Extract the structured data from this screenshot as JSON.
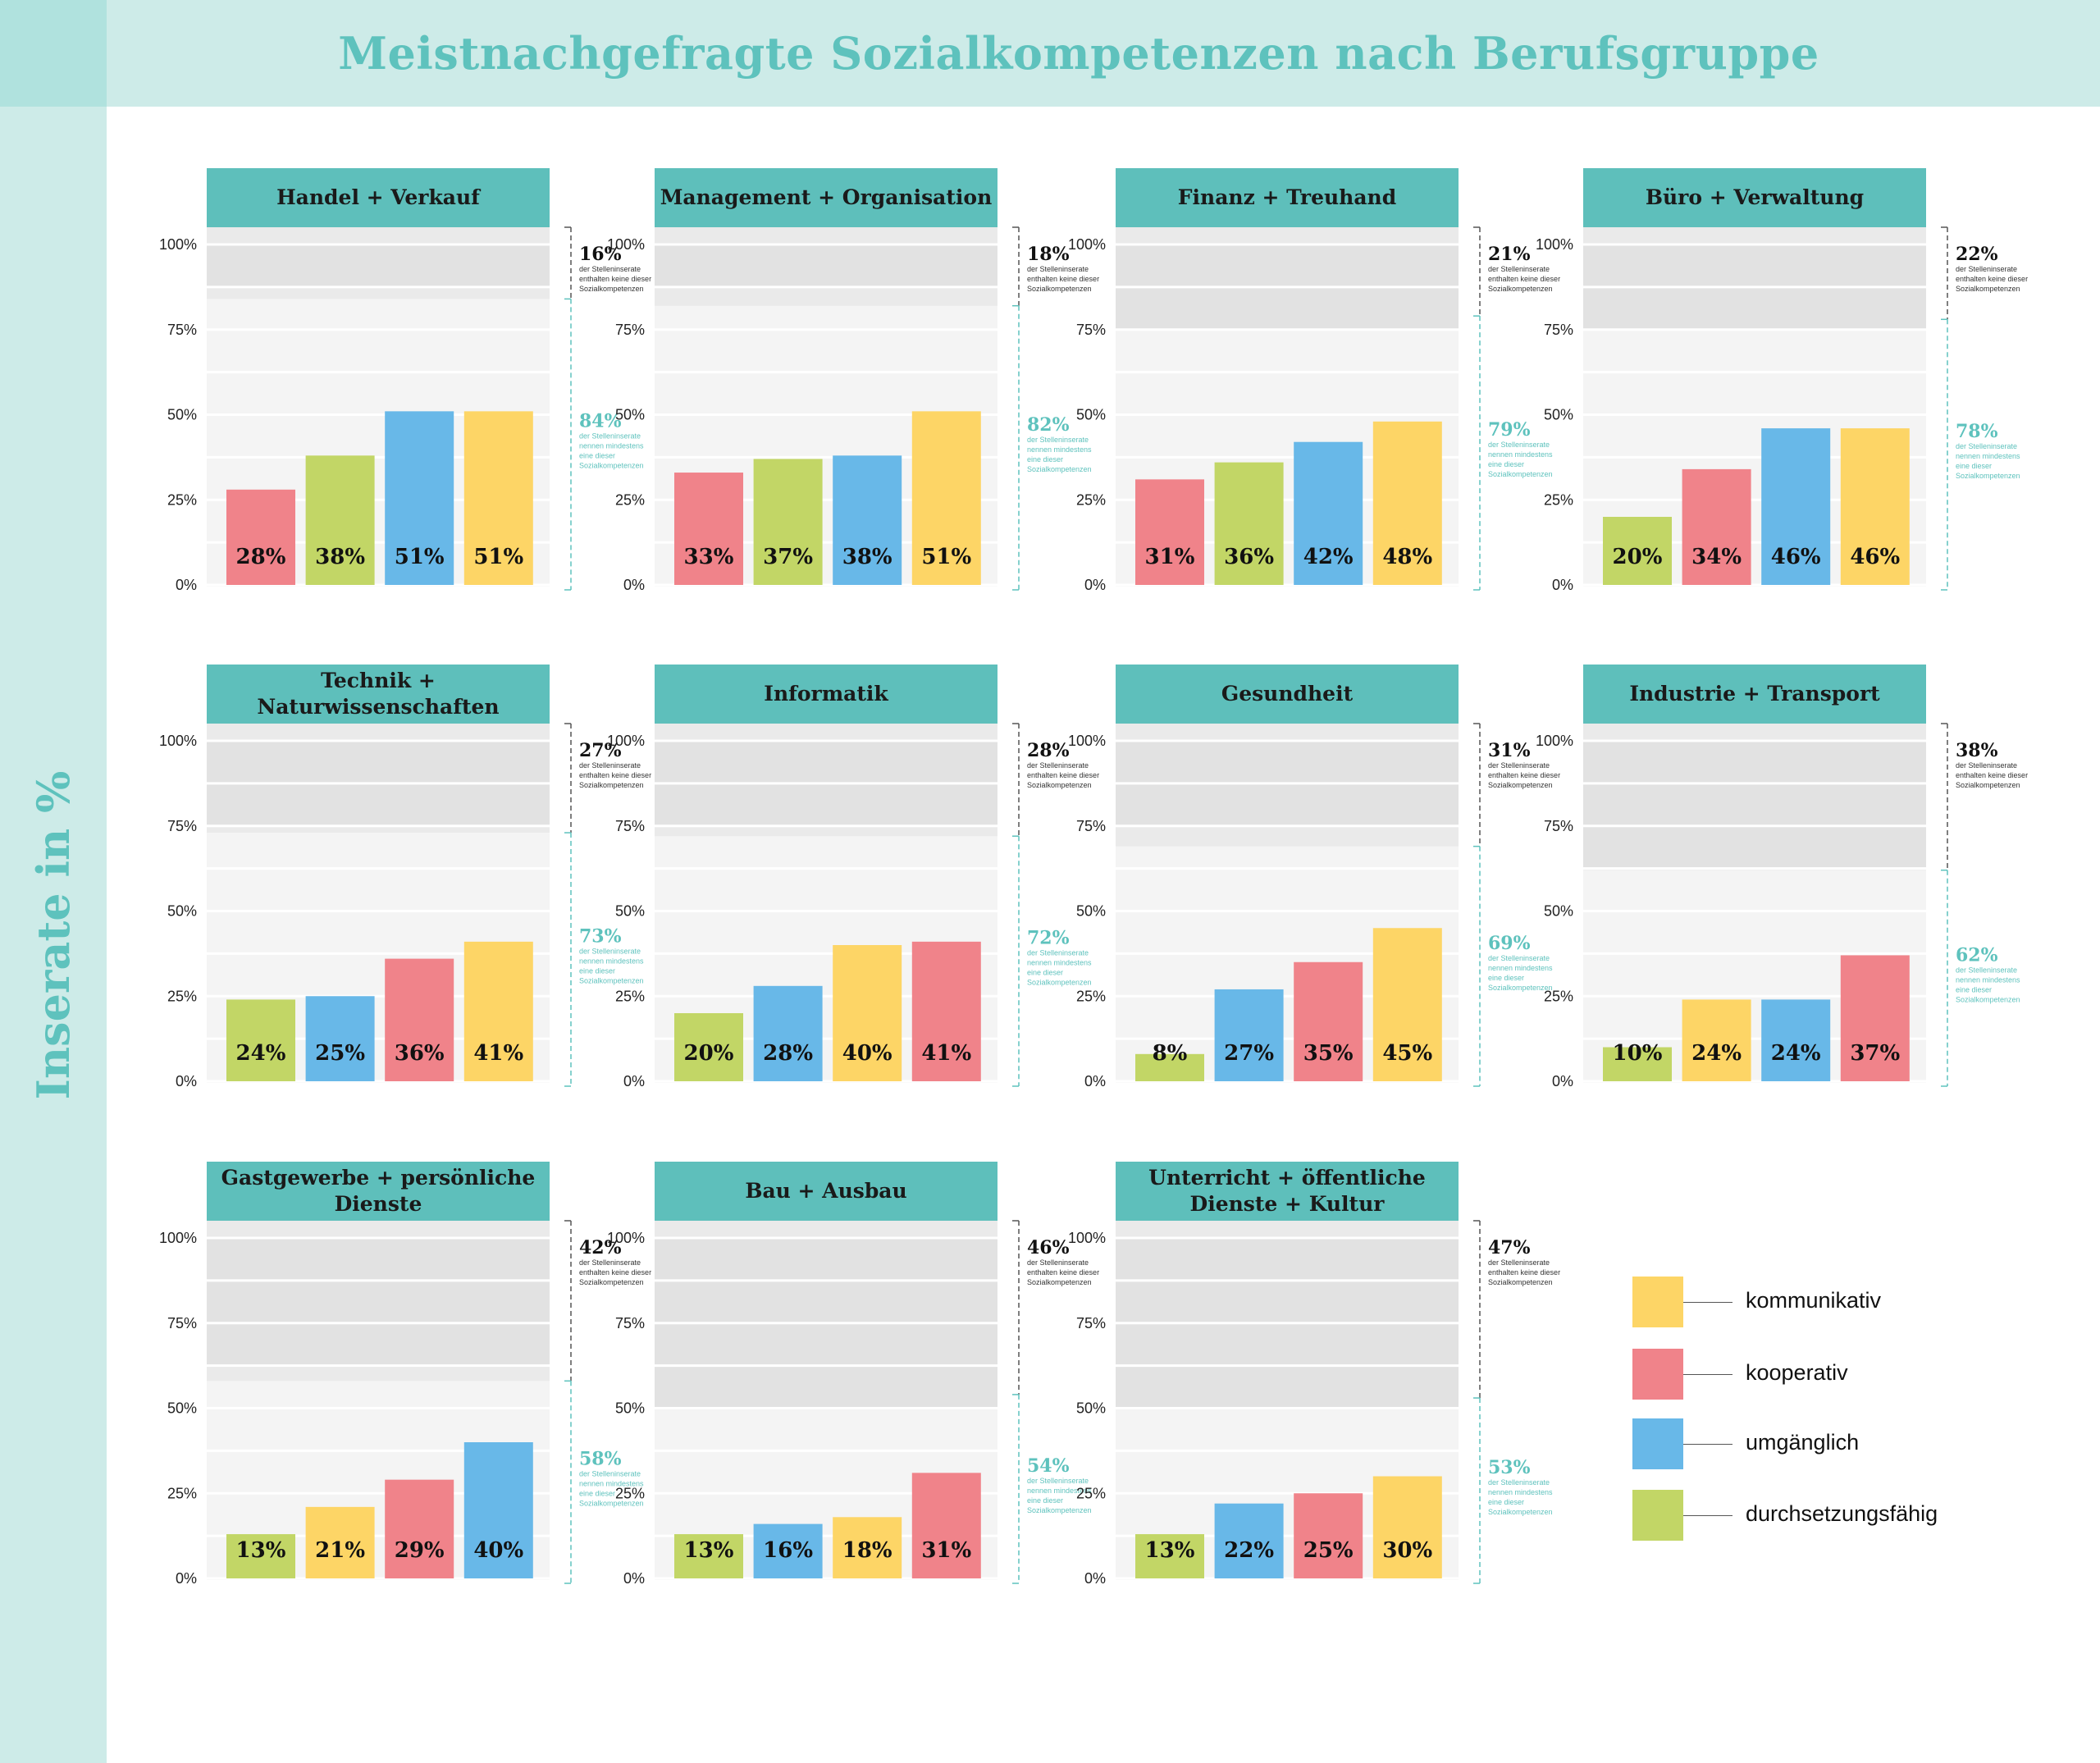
{
  "title": "Meistnachgefragte Sozialkompetenzen nach Berufsgruppe",
  "y_axis_title": "Inserate in %",
  "y_ticks": [
    "100%",
    "75%",
    "50%",
    "25%",
    "0%"
  ],
  "colors": {
    "kommunikativ": "#fdd566",
    "kooperativ": "#f0838a",
    "umgänglich": "#68b8e8",
    "durchsetzungsfähig": "#c2d666",
    "header": "#5ebfbb",
    "accent": "#5ec2bd"
  },
  "legend": [
    {
      "key": "kommunikativ",
      "label": "kommunikativ"
    },
    {
      "key": "kooperativ",
      "label": "kooperativ"
    },
    {
      "key": "umgänglich",
      "label": "umgänglich"
    },
    {
      "key": "durchsetzungsfähig",
      "label": "durchsetzungsfähig"
    }
  ],
  "chart_data": {
    "type": "bar",
    "ylim": [
      0,
      100
    ],
    "ylabel": "Inserate in %",
    "panels": [
      {
        "title": "Handel + Verkauf",
        "without": "16%",
        "without_text": [
          "der Stelleninserate",
          "enthalten keine dieser",
          "Sozialkompetenzen"
        ],
        "with": "84%",
        "with_text": [
          "der Stelleninserate",
          "nennen mindestens",
          "eine dieser",
          "Sozialkompetenzen"
        ],
        "with_value": 84,
        "bars": [
          {
            "series": "kooperativ",
            "value": 28,
            "label": "28%"
          },
          {
            "series": "durchsetzungsfähig",
            "value": 38,
            "label": "38%"
          },
          {
            "series": "umgänglich",
            "value": 51,
            "label": "51%"
          },
          {
            "series": "kommunikativ",
            "value": 51,
            "label": "51%"
          }
        ]
      },
      {
        "title": "Management + Organisation",
        "without": "18%",
        "without_text": [
          "der Stelleninserate",
          "enthalten keine dieser",
          "Sozialkompetenzen"
        ],
        "with": "82%",
        "with_text": [
          "der Stelleninserate",
          "nennen mindestens",
          "eine dieser",
          "Sozialkompetenzen"
        ],
        "with_value": 82,
        "bars": [
          {
            "series": "kooperativ",
            "value": 33,
            "label": "33%"
          },
          {
            "series": "durchsetzungsfähig",
            "value": 37,
            "label": "37%"
          },
          {
            "series": "umgänglich",
            "value": 38,
            "label": "38%"
          },
          {
            "series": "kommunikativ",
            "value": 51,
            "label": "51%"
          }
        ]
      },
      {
        "title": "Finanz + Treuhand",
        "without": "21%",
        "without_text": [
          "der Stelleninserate",
          "enthalten keine dieser",
          "Sozialkompetenzen"
        ],
        "with": "79%",
        "with_text": [
          "der Stelleninserate",
          "nennen mindestens",
          "eine dieser",
          "Sozialkompetenzen"
        ],
        "with_value": 79,
        "bars": [
          {
            "series": "kooperativ",
            "value": 31,
            "label": "31%"
          },
          {
            "series": "durchsetzungsfähig",
            "value": 36,
            "label": "36%"
          },
          {
            "series": "umgänglich",
            "value": 42,
            "label": "42%"
          },
          {
            "series": "kommunikativ",
            "value": 48,
            "label": "48%"
          }
        ]
      },
      {
        "title": "Büro + Verwaltung",
        "without": "22%",
        "without_text": [
          "der Stelleninserate",
          "enthalten keine dieser",
          "Sozialkompetenzen"
        ],
        "with": "78%",
        "with_text": [
          "der Stelleninserate",
          "nennen mindestens",
          "eine dieser",
          "Sozialkompetenzen"
        ],
        "with_value": 78,
        "bars": [
          {
            "series": "durchsetzungsfähig",
            "value": 20,
            "label": "20%"
          },
          {
            "series": "kooperativ",
            "value": 34,
            "label": "34%"
          },
          {
            "series": "umgänglich",
            "value": 46,
            "label": "46%"
          },
          {
            "series": "kommunikativ",
            "value": 46,
            "label": "46%"
          }
        ]
      },
      {
        "title": "Technik + Naturwissenschaften",
        "without": "27%",
        "without_text": [
          "der Stelleninserate",
          "enthalten keine dieser",
          "Sozialkompetenzen"
        ],
        "with": "73%",
        "with_text": [
          "der Stelleninserate",
          "nennen mindestens",
          "eine dieser",
          "Sozialkompetenzen"
        ],
        "with_value": 73,
        "bars": [
          {
            "series": "durchsetzungsfähig",
            "value": 24,
            "label": "24%"
          },
          {
            "series": "umgänglich",
            "value": 25,
            "label": "25%"
          },
          {
            "series": "kooperativ",
            "value": 36,
            "label": "36%"
          },
          {
            "series": "kommunikativ",
            "value": 41,
            "label": "41%"
          }
        ]
      },
      {
        "title": "Informatik",
        "without": "28%",
        "without_text": [
          "der Stelleninserate",
          "enthalten keine dieser",
          "Sozialkompetenzen"
        ],
        "with": "72%",
        "with_text": [
          "der Stelleninserate",
          "nennen mindestens",
          "eine dieser",
          "Sozialkompetenzen"
        ],
        "with_value": 72,
        "bars": [
          {
            "series": "durchsetzungsfähig",
            "value": 20,
            "label": "20%"
          },
          {
            "series": "umgänglich",
            "value": 28,
            "label": "28%"
          },
          {
            "series": "kommunikativ",
            "value": 40,
            "label": "40%"
          },
          {
            "series": "kooperativ",
            "value": 41,
            "label": "41%"
          }
        ]
      },
      {
        "title": "Gesundheit",
        "without": "31%",
        "without_text": [
          "der Stelleninserate",
          "enthalten keine dieser",
          "Sozialkompetenzen"
        ],
        "with": "69%",
        "with_text": [
          "der Stelleninserate",
          "nennen mindestens",
          "eine dieser",
          "Sozialkompetenzen"
        ],
        "with_value": 69,
        "bars": [
          {
            "series": "durchsetzungsfähig",
            "value": 8,
            "label": "8%"
          },
          {
            "series": "umgänglich",
            "value": 27,
            "label": "27%"
          },
          {
            "series": "kooperativ",
            "value": 35,
            "label": "35%"
          },
          {
            "series": "kommunikativ",
            "value": 45,
            "label": "45%"
          }
        ]
      },
      {
        "title": "Industrie + Transport",
        "without": "38%",
        "without_text": [
          "der Stelleninserate",
          "enthalten keine dieser",
          "Sozialkompetenzen"
        ],
        "with": "62%",
        "with_text": [
          "der Stelleninserate",
          "nennen mindestens",
          "eine dieser",
          "Sozialkompetenzen"
        ],
        "with_value": 62,
        "bars": [
          {
            "series": "durchsetzungsfähig",
            "value": 10,
            "label": "10%"
          },
          {
            "series": "kommunikativ",
            "value": 24,
            "label": "24%"
          },
          {
            "series": "umgänglich",
            "value": 24,
            "label": "24%"
          },
          {
            "series": "kooperativ",
            "value": 37,
            "label": "37%"
          }
        ]
      },
      {
        "title": "Gastgewerbe + persönliche Dienste",
        "title_lines": [
          "Gastgewerbe + persönliche",
          "Dienste"
        ],
        "without": "42%",
        "without_text": [
          "der Stelleninserate",
          "enthalten keine dieser",
          "Sozialkompetenzen"
        ],
        "with": "58%",
        "with_text": [
          "der Stelleninserate",
          "nennen mindestens",
          "eine dieser",
          "Sozialkompetenzen"
        ],
        "with_value": 58,
        "bars": [
          {
            "series": "durchsetzungsfähig",
            "value": 13,
            "label": "13%"
          },
          {
            "series": "kommunikativ",
            "value": 21,
            "label": "21%"
          },
          {
            "series": "kooperativ",
            "value": 29,
            "label": "29%"
          },
          {
            "series": "umgänglich",
            "value": 40,
            "label": "40%"
          }
        ]
      },
      {
        "title": "Bau + Ausbau",
        "without": "46%",
        "without_text": [
          "der Stelleninserate",
          "enthalten keine dieser",
          "Sozialkompetenzen"
        ],
        "with": "54%",
        "with_text": [
          "der Stelleninserate",
          "nennen mindestens",
          "eine dieser",
          "Sozialkompetenzen"
        ],
        "with_value": 54,
        "bars": [
          {
            "series": "durchsetzungsfähig",
            "value": 13,
            "label": "13%"
          },
          {
            "series": "umgänglich",
            "value": 16,
            "label": "16%"
          },
          {
            "series": "kommunikativ",
            "value": 18,
            "label": "18%"
          },
          {
            "series": "kooperativ",
            "value": 31,
            "label": "31%"
          }
        ]
      },
      {
        "title": "Unterricht + öffentliche Dienste + Kultur",
        "title_lines": [
          "Unterricht + öffentliche",
          "Dienste + Kultur"
        ],
        "without": "47%",
        "without_text": [
          "der Stelleninserate",
          "enthalten keine dieser",
          "Sozialkompetenzen"
        ],
        "with": "53%",
        "with_text": [
          "der Stelleninserate",
          "nennen mindestens",
          "eine dieser",
          "Sozialkompetenzen"
        ],
        "with_value": 53,
        "bars": [
          {
            "series": "durchsetzungsfähig",
            "value": 13,
            "label": "13%"
          },
          {
            "series": "umgänglich",
            "value": 22,
            "label": "22%"
          },
          {
            "series": "kooperativ",
            "value": 25,
            "label": "25%"
          },
          {
            "series": "kommunikativ",
            "value": 30,
            "label": "30%"
          }
        ]
      }
    ]
  }
}
